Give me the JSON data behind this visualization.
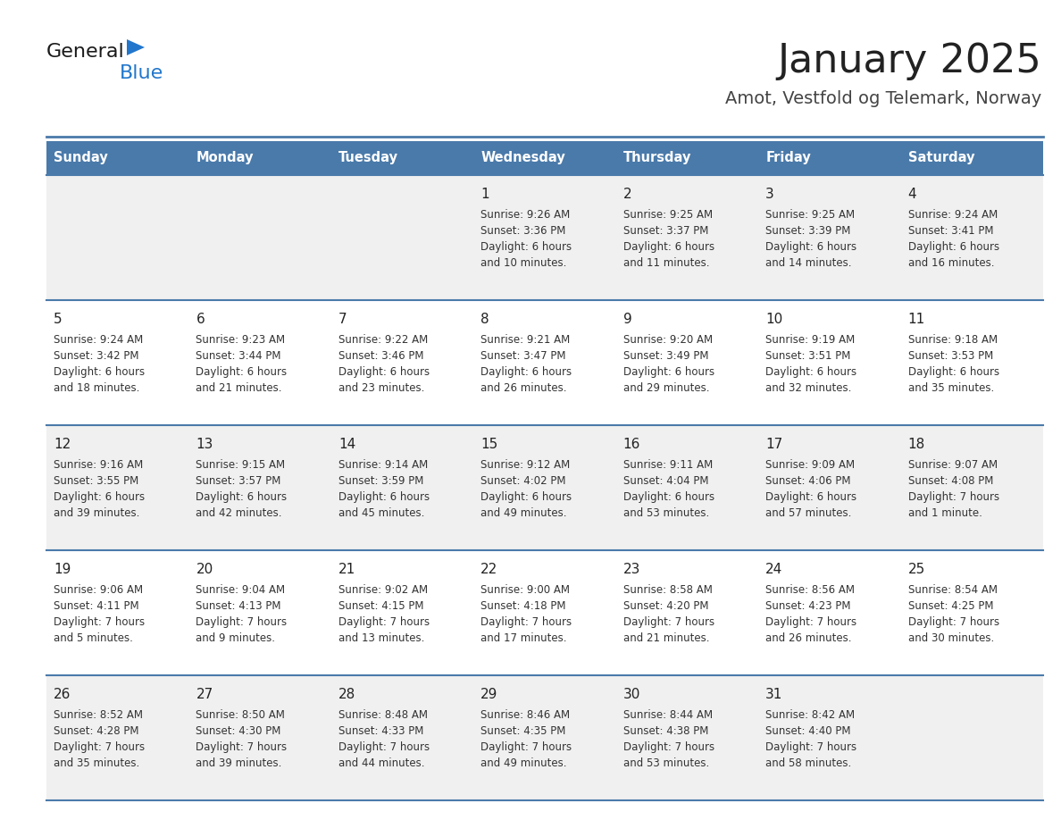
{
  "title": "January 2025",
  "subtitle": "Amot, Vestfold og Telemark, Norway",
  "days_of_week": [
    "Sunday",
    "Monday",
    "Tuesday",
    "Wednesday",
    "Thursday",
    "Friday",
    "Saturday"
  ],
  "header_bg": "#4a7aaa",
  "header_text": "#ffffff",
  "row_bg_odd": "#f0f0f0",
  "row_bg_even": "#ffffff",
  "border_color": "#4a7aaa",
  "title_color": "#222222",
  "subtitle_color": "#444444",
  "day_number_color": "#222222",
  "cell_text_color": "#333333",
  "logo_black": "#1a1a1a",
  "logo_blue": "#2277cc",
  "calendar_data": [
    [
      null,
      null,
      null,
      {
        "day": 1,
        "sunrise": "9:26 AM",
        "sunset": "3:36 PM",
        "daylight_h": "6 hours",
        "daylight_m": "and 10 minutes."
      },
      {
        "day": 2,
        "sunrise": "9:25 AM",
        "sunset": "3:37 PM",
        "daylight_h": "6 hours",
        "daylight_m": "and 11 minutes."
      },
      {
        "day": 3,
        "sunrise": "9:25 AM",
        "sunset": "3:39 PM",
        "daylight_h": "6 hours",
        "daylight_m": "and 14 minutes."
      },
      {
        "day": 4,
        "sunrise": "9:24 AM",
        "sunset": "3:41 PM",
        "daylight_h": "6 hours",
        "daylight_m": "and 16 minutes."
      }
    ],
    [
      {
        "day": 5,
        "sunrise": "9:24 AM",
        "sunset": "3:42 PM",
        "daylight_h": "6 hours",
        "daylight_m": "and 18 minutes."
      },
      {
        "day": 6,
        "sunrise": "9:23 AM",
        "sunset": "3:44 PM",
        "daylight_h": "6 hours",
        "daylight_m": "and 21 minutes."
      },
      {
        "day": 7,
        "sunrise": "9:22 AM",
        "sunset": "3:46 PM",
        "daylight_h": "6 hours",
        "daylight_m": "and 23 minutes."
      },
      {
        "day": 8,
        "sunrise": "9:21 AM",
        "sunset": "3:47 PM",
        "daylight_h": "6 hours",
        "daylight_m": "and 26 minutes."
      },
      {
        "day": 9,
        "sunrise": "9:20 AM",
        "sunset": "3:49 PM",
        "daylight_h": "6 hours",
        "daylight_m": "and 29 minutes."
      },
      {
        "day": 10,
        "sunrise": "9:19 AM",
        "sunset": "3:51 PM",
        "daylight_h": "6 hours",
        "daylight_m": "and 32 minutes."
      },
      {
        "day": 11,
        "sunrise": "9:18 AM",
        "sunset": "3:53 PM",
        "daylight_h": "6 hours",
        "daylight_m": "and 35 minutes."
      }
    ],
    [
      {
        "day": 12,
        "sunrise": "9:16 AM",
        "sunset": "3:55 PM",
        "daylight_h": "6 hours",
        "daylight_m": "and 39 minutes."
      },
      {
        "day": 13,
        "sunrise": "9:15 AM",
        "sunset": "3:57 PM",
        "daylight_h": "6 hours",
        "daylight_m": "and 42 minutes."
      },
      {
        "day": 14,
        "sunrise": "9:14 AM",
        "sunset": "3:59 PM",
        "daylight_h": "6 hours",
        "daylight_m": "and 45 minutes."
      },
      {
        "day": 15,
        "sunrise": "9:12 AM",
        "sunset": "4:02 PM",
        "daylight_h": "6 hours",
        "daylight_m": "and 49 minutes."
      },
      {
        "day": 16,
        "sunrise": "9:11 AM",
        "sunset": "4:04 PM",
        "daylight_h": "6 hours",
        "daylight_m": "and 53 minutes."
      },
      {
        "day": 17,
        "sunrise": "9:09 AM",
        "sunset": "4:06 PM",
        "daylight_h": "6 hours",
        "daylight_m": "and 57 minutes."
      },
      {
        "day": 18,
        "sunrise": "9:07 AM",
        "sunset": "4:08 PM",
        "daylight_h": "7 hours",
        "daylight_m": "and 1 minute."
      }
    ],
    [
      {
        "day": 19,
        "sunrise": "9:06 AM",
        "sunset": "4:11 PM",
        "daylight_h": "7 hours",
        "daylight_m": "and 5 minutes."
      },
      {
        "day": 20,
        "sunrise": "9:04 AM",
        "sunset": "4:13 PM",
        "daylight_h": "7 hours",
        "daylight_m": "and 9 minutes."
      },
      {
        "day": 21,
        "sunrise": "9:02 AM",
        "sunset": "4:15 PM",
        "daylight_h": "7 hours",
        "daylight_m": "and 13 minutes."
      },
      {
        "day": 22,
        "sunrise": "9:00 AM",
        "sunset": "4:18 PM",
        "daylight_h": "7 hours",
        "daylight_m": "and 17 minutes."
      },
      {
        "day": 23,
        "sunrise": "8:58 AM",
        "sunset": "4:20 PM",
        "daylight_h": "7 hours",
        "daylight_m": "and 21 minutes."
      },
      {
        "day": 24,
        "sunrise": "8:56 AM",
        "sunset": "4:23 PM",
        "daylight_h": "7 hours",
        "daylight_m": "and 26 minutes."
      },
      {
        "day": 25,
        "sunrise": "8:54 AM",
        "sunset": "4:25 PM",
        "daylight_h": "7 hours",
        "daylight_m": "and 30 minutes."
      }
    ],
    [
      {
        "day": 26,
        "sunrise": "8:52 AM",
        "sunset": "4:28 PM",
        "daylight_h": "7 hours",
        "daylight_m": "and 35 minutes."
      },
      {
        "day": 27,
        "sunrise": "8:50 AM",
        "sunset": "4:30 PM",
        "daylight_h": "7 hours",
        "daylight_m": "and 39 minutes."
      },
      {
        "day": 28,
        "sunrise": "8:48 AM",
        "sunset": "4:33 PM",
        "daylight_h": "7 hours",
        "daylight_m": "and 44 minutes."
      },
      {
        "day": 29,
        "sunrise": "8:46 AM",
        "sunset": "4:35 PM",
        "daylight_h": "7 hours",
        "daylight_m": "and 49 minutes."
      },
      {
        "day": 30,
        "sunrise": "8:44 AM",
        "sunset": "4:38 PM",
        "daylight_h": "7 hours",
        "daylight_m": "and 53 minutes."
      },
      {
        "day": 31,
        "sunrise": "8:42 AM",
        "sunset": "4:40 PM",
        "daylight_h": "7 hours",
        "daylight_m": "and 58 minutes."
      },
      null
    ]
  ]
}
